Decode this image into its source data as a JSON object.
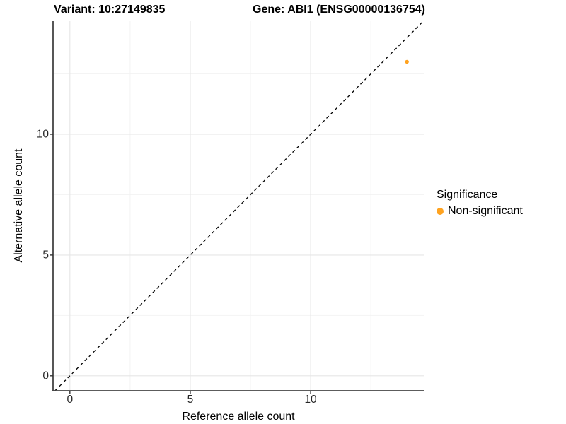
{
  "chart_data": {
    "type": "scatter",
    "title": "Variant: 10:27149835        Gene: ABI1 (ENSG00000136754)",
    "title_left": "Variant: 10:27149835",
    "title_right": "Gene: ABI1 (ENSG00000136754)",
    "xlabel": "Reference allele count",
    "ylabel": "Alternative allele count",
    "xlim": [
      -0.7,
      14.7
    ],
    "ylim": [
      -0.62,
      14.68
    ],
    "x_ticks": [
      {
        "value": 0,
        "label": "0"
      },
      {
        "value": 5,
        "label": "5"
      },
      {
        "value": 10,
        "label": "10"
      }
    ],
    "y_ticks": [
      {
        "value": 0,
        "label": "0"
      },
      {
        "value": 5,
        "label": "5"
      },
      {
        "value": 10,
        "label": "10"
      }
    ],
    "x_minor": [
      2.5,
      7.5,
      12.5
    ],
    "y_minor": [
      2.5,
      7.5,
      12.5
    ],
    "grid": "major+minor",
    "legend_position": "right",
    "reference_line": {
      "type": "identity",
      "slope": 1,
      "intercept": 0,
      "style": "dashed",
      "color": "#000000"
    },
    "series": [
      {
        "name": "Non-significant",
        "color": "#FFA320",
        "marker": "circle",
        "points": [
          {
            "x": 14,
            "y": 13
          }
        ]
      }
    ],
    "legend": {
      "title": "Significance",
      "entries": [
        {
          "label": "Non-significant",
          "color": "#FFA320"
        }
      ]
    }
  },
  "colors": {
    "background": "#ffffff",
    "point": "#FFA320",
    "grid_major": "#e6e6e6",
    "grid_minor": "#f2f2f2",
    "axis_line": "#444444",
    "tick_mark": "#333333",
    "identity_line": "#000000"
  }
}
